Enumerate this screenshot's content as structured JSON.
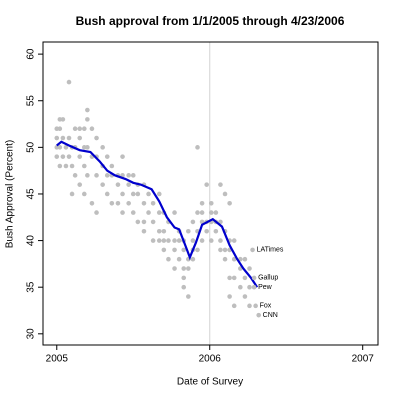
{
  "chart_data": {
    "type": "scatter",
    "title": "Bush approval from 1/1/2005 through 4/23/2006",
    "x_label": "Date of Survey",
    "y_label": "Bush Approval (Percent)",
    "xlim": [
      2004.91,
      2007.1
    ],
    "ylim": [
      28.8,
      61.3
    ],
    "xticks": [
      2005,
      2006,
      2007
    ],
    "yticks": [
      30,
      35,
      40,
      45,
      50,
      55,
      60
    ],
    "reference_line_x": 2006,
    "reference_line_color": "#d3d3d3",
    "series": [
      {
        "type": "scatter",
        "color": "#bebebe",
        "x": [
          2005.0,
          2005.0,
          2005.0,
          2005.0,
          2005.02,
          2005.02,
          2005.02,
          2005.02,
          2005.04,
          2005.04,
          2005.04,
          2005.06,
          2005.06,
          2005.08,
          2005.08,
          2005.08,
          2005.1,
          2005.1,
          2005.1,
          2005.12,
          2005.12,
          2005.12,
          2005.15,
          2005.15,
          2005.15,
          2005.15,
          2005.18,
          2005.18,
          2005.18,
          2005.18,
          2005.2,
          2005.2,
          2005.2,
          2005.2,
          2005.23,
          2005.23,
          2005.23,
          2005.26,
          2005.26,
          2005.26,
          2005.26,
          2005.3,
          2005.3,
          2005.3,
          2005.33,
          2005.33,
          2005.33,
          2005.36,
          2005.36,
          2005.36,
          2005.4,
          2005.4,
          2005.4,
          2005.43,
          2005.43,
          2005.43,
          2005.43,
          2005.47,
          2005.47,
          2005.47,
          2005.5,
          2005.5,
          2005.5,
          2005.53,
          2005.53,
          2005.53,
          2005.57,
          2005.57,
          2005.57,
          2005.57,
          2005.6,
          2005.6,
          2005.63,
          2005.63,
          2005.63,
          2005.67,
          2005.67,
          2005.67,
          2005.67,
          2005.7,
          2005.7,
          2005.7,
          2005.7,
          2005.73,
          2005.73,
          2005.73,
          2005.77,
          2005.77,
          2005.77,
          2005.77,
          2005.8,
          2005.8,
          2005.8,
          2005.83,
          2005.83,
          2005.83,
          2005.83,
          2005.83,
          2005.86,
          2005.86,
          2005.86,
          2005.86,
          2005.89,
          2005.89,
          2005.89,
          2005.89,
          2005.92,
          2005.92,
          2005.92,
          2005.92,
          2005.95,
          2005.95,
          2005.95,
          2005.95,
          2005.98,
          2005.98,
          2005.98,
          2006.01,
          2006.01,
          2006.01,
          2006.01,
          2006.04,
          2006.04,
          2006.04,
          2006.07,
          2006.07,
          2006.07,
          2006.07,
          2006.1,
          2006.1,
          2006.1,
          2006.1,
          2006.13,
          2006.13,
          2006.13,
          2006.13,
          2006.13,
          2006.16,
          2006.16,
          2006.16,
          2006.16,
          2006.2,
          2006.2,
          2006.2,
          2006.23,
          2006.23,
          2006.23,
          2006.26,
          2006.26,
          2006.26
        ],
        "y": [
          52,
          51,
          50,
          49,
          53,
          52,
          50,
          48,
          53,
          51,
          49,
          50,
          48,
          57,
          51,
          49,
          50,
          48,
          45,
          52,
          50,
          47,
          52,
          51,
          49,
          46,
          52,
          50,
          48,
          45,
          54,
          53,
          50,
          47,
          52,
          49,
          44,
          51,
          49,
          47,
          43,
          50,
          48,
          46,
          49,
          47,
          45,
          48,
          47,
          44,
          47,
          46,
          44,
          49,
          47,
          45,
          43,
          47,
          46,
          44,
          47,
          45,
          43,
          46,
          45,
          42,
          46,
          44,
          42,
          41,
          45,
          43,
          44,
          42,
          40,
          45,
          43,
          41,
          40,
          43,
          41,
          40,
          39,
          42,
          40,
          38,
          43,
          40,
          39,
          37,
          41,
          40,
          38,
          40,
          39,
          37,
          36,
          35,
          41,
          38,
          37,
          34,
          42,
          40,
          39,
          38,
          50,
          43,
          41,
          39,
          44,
          43,
          42,
          40,
          46,
          42,
          41,
          44,
          43,
          42,
          40,
          43,
          42,
          41,
          46,
          42,
          40,
          39,
          45,
          41,
          39,
          38,
          44,
          40,
          39,
          36,
          34,
          40,
          38,
          36,
          33,
          38,
          37,
          35,
          38,
          36,
          34,
          37,
          35,
          33
        ]
      },
      {
        "type": "line",
        "color": "#0000cd",
        "x": [
          2005.0,
          2005.03,
          2005.08,
          2005.15,
          2005.22,
          2005.28,
          2005.33,
          2005.38,
          2005.45,
          2005.5,
          2005.55,
          2005.62,
          2005.67,
          2005.72,
          2005.77,
          2005.8,
          2005.84,
          2005.87,
          2005.91,
          2005.95,
          2006.02,
          2006.08,
          2006.13,
          2006.18,
          2006.22,
          2006.27,
          2006.31
        ],
        "y": [
          50.2,
          50.6,
          50.2,
          49.7,
          49.5,
          48.5,
          47.5,
          47,
          46.6,
          46.2,
          46,
          45.5,
          44.2,
          42.5,
          41.4,
          41.2,
          39.5,
          38.2,
          39.8,
          41.7,
          42.3,
          41.5,
          39.5,
          38,
          37,
          36,
          35
        ]
      }
    ],
    "annotations": [
      {
        "text": "LATimes",
        "x": 2006.28,
        "y": 39
      },
      {
        "text": "Gallup",
        "x": 2006.29,
        "y": 36
      },
      {
        "text": "Pew",
        "x": 2006.29,
        "y": 35
      },
      {
        "text": "Fox",
        "x": 2006.3,
        "y": 33
      },
      {
        "text": "CNN",
        "x": 2006.32,
        "y": 32
      }
    ]
  }
}
